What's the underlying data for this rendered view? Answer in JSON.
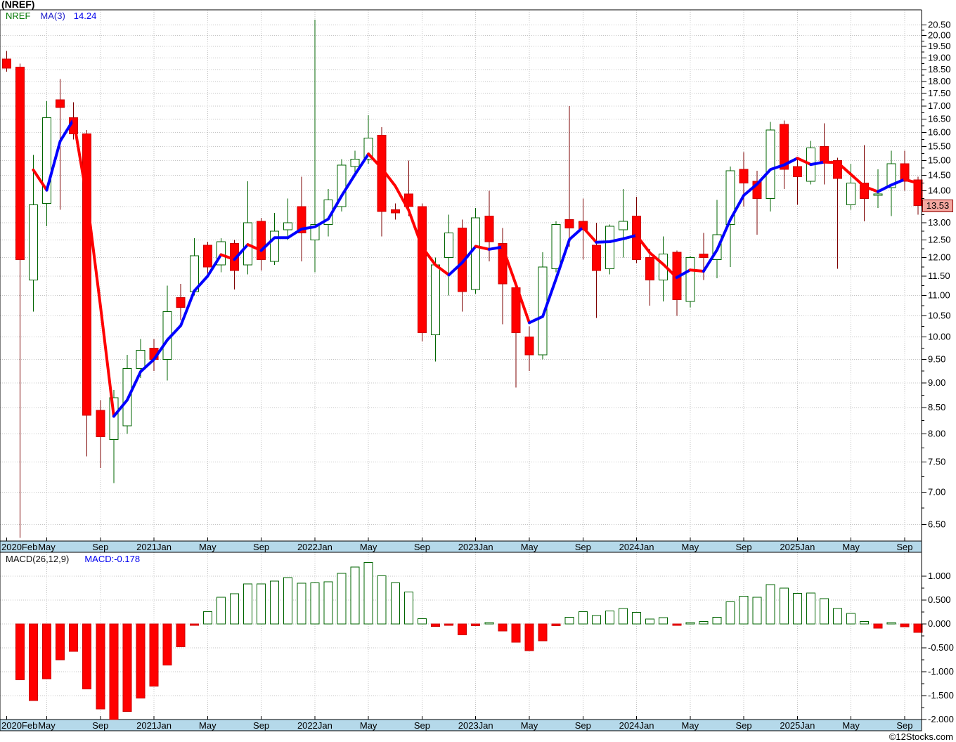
{
  "header": {
    "title": "(NREF)"
  },
  "legend": {
    "symbol": "NREF",
    "ma_label": "MA(3)",
    "ma_value": "14.24"
  },
  "macd_legend": {
    "label": "MACD(26,12,9)",
    "value": "MACD:-0.178"
  },
  "footer": {
    "copyright": "©12Stocks.com"
  },
  "colors": {
    "grid": "#c4c4c4",
    "frame": "#000000",
    "axis_bar": "#b5d9ea",
    "up_fill": "#ffffff",
    "up_border": "#006400",
    "wick_up": "#006400",
    "down_fill": "#ff0000",
    "down_border": "#cc0000",
    "wick_down": "#7d0000",
    "ma_up": "#0000ff",
    "ma_down": "#ff0000",
    "macd_pos_fill": "#ffffff",
    "macd_pos_border": "#006400",
    "macd_neg_fill": "#ff0000",
    "macd_neg_border": "#cc0000",
    "badge_bg": "#f4a8a0",
    "badge_border": "#8b0000",
    "text": "#000000"
  },
  "chart_data": {
    "type": "candlestick",
    "title": "(NREF)",
    "panels": [
      "price (log scale)",
      "macd_histogram"
    ],
    "x_unit": "month",
    "ma_period": 3,
    "ma_last_value": 14.24,
    "macd_params": "26,12,9",
    "macd_last_value": -0.178,
    "price_axis": {
      "scale": "log",
      "label_min": 6.5,
      "label_max": 20.5,
      "label_step": 0.5,
      "last_price": 13.53,
      "last_price_label": "13.53"
    },
    "macd_axis": {
      "min": -2.0,
      "max": 1.0,
      "step": 0.5
    },
    "x_tick_labels": [
      [
        0,
        "2020Feb"
      ],
      [
        3,
        "May"
      ],
      [
        7,
        "Sep"
      ],
      [
        11,
        "2021Jan"
      ],
      [
        15,
        "May"
      ],
      [
        19,
        "Sep"
      ],
      [
        23,
        "2022Jan"
      ],
      [
        27,
        "May"
      ],
      [
        31,
        "Sep"
      ],
      [
        35,
        "2023Jan"
      ],
      [
        39,
        "May"
      ],
      [
        43,
        "Sep"
      ],
      [
        47,
        "2024Jan"
      ],
      [
        51,
        "May"
      ],
      [
        55,
        "Sep"
      ],
      [
        59,
        "2025Jan"
      ],
      [
        63,
        "May"
      ],
      [
        67,
        "Sep"
      ]
    ],
    "tuple_format": [
      "month",
      "open",
      "high",
      "low",
      "close",
      "macd"
    ],
    "candles": [
      [
        "2020-02",
        18.95,
        19.3,
        18.4,
        18.55,
        null
      ],
      [
        "2020-03",
        18.6,
        18.75,
        6.3,
        11.95,
        -1.17
      ],
      [
        "2020-04",
        11.4,
        15.2,
        10.6,
        13.55,
        -1.6
      ],
      [
        "2020-05",
        13.6,
        17.2,
        12.9,
        16.55,
        -1.15
      ],
      [
        "2020-06",
        17.25,
        18.1,
        13.4,
        16.95,
        -0.75
      ],
      [
        "2020-07",
        16.55,
        17.15,
        15.75,
        15.95,
        -0.57
      ],
      [
        "2020-08",
        15.95,
        16.1,
        7.6,
        8.35,
        -1.36
      ],
      [
        "2020-09",
        8.45,
        8.65,
        7.4,
        7.95,
        -1.78
      ],
      [
        "2020-10",
        7.9,
        8.85,
        7.15,
        8.7,
        -2.0
      ],
      [
        "2020-11",
        8.15,
        9.6,
        8.0,
        9.3,
        -1.83
      ],
      [
        "2020-12",
        9.3,
        9.95,
        9.1,
        9.7,
        -1.55
      ],
      [
        "2021-01",
        9.75,
        9.95,
        9.25,
        9.5,
        -1.3
      ],
      [
        "2021-02",
        9.5,
        11.25,
        9.05,
        10.6,
        -0.86
      ],
      [
        "2021-03",
        10.95,
        11.3,
        10.4,
        10.7,
        -0.48
      ],
      [
        "2021-04",
        11.1,
        12.55,
        11.0,
        12.05,
        -0.02
      ],
      [
        "2021-05",
        12.35,
        12.45,
        11.5,
        11.75,
        0.26
      ],
      [
        "2021-06",
        11.8,
        12.55,
        11.6,
        12.45,
        0.56
      ],
      [
        "2021-07",
        12.4,
        12.5,
        11.15,
        11.65,
        0.63
      ],
      [
        "2021-08",
        11.8,
        14.3,
        11.55,
        13.0,
        0.84
      ],
      [
        "2021-09",
        13.05,
        13.15,
        11.65,
        11.95,
        0.84
      ],
      [
        "2021-10",
        11.9,
        13.3,
        11.8,
        12.75,
        0.9
      ],
      [
        "2021-11",
        12.8,
        13.75,
        12.5,
        13.0,
        0.97
      ],
      [
        "2021-12",
        13.5,
        14.45,
        11.9,
        12.7,
        0.85
      ],
      [
        "2022-01",
        12.5,
        20.75,
        11.6,
        12.95,
        0.86
      ],
      [
        "2022-02",
        12.95,
        14.05,
        12.6,
        13.7,
        0.88
      ],
      [
        "2022-03",
        13.5,
        15.05,
        13.35,
        14.85,
        1.06
      ],
      [
        "2022-04",
        14.8,
        15.35,
        14.45,
        15.05,
        1.19
      ],
      [
        "2022-05",
        15.05,
        16.65,
        14.9,
        15.8,
        1.29
      ],
      [
        "2022-06",
        15.9,
        16.2,
        12.6,
        13.35,
        1.01
      ],
      [
        "2022-07",
        13.4,
        13.6,
        13.1,
        13.3,
        0.86
      ],
      [
        "2022-08",
        13.9,
        15.0,
        13.2,
        13.5,
        0.67
      ],
      [
        "2022-09",
        13.5,
        13.6,
        9.9,
        10.1,
        0.11
      ],
      [
        "2022-10",
        10.05,
        12.0,
        9.45,
        11.8,
        -0.05
      ],
      [
        "2022-11",
        12.0,
        13.25,
        11.0,
        12.7,
        -0.03
      ],
      [
        "2022-12",
        12.85,
        13.1,
        10.6,
        11.1,
        -0.23
      ],
      [
        "2023-01",
        11.15,
        13.45,
        11.05,
        13.15,
        -0.04
      ],
      [
        "2023-02",
        13.2,
        14.0,
        11.9,
        12.45,
        0.01
      ],
      [
        "2023-03",
        12.4,
        12.85,
        10.3,
        11.3,
        -0.15
      ],
      [
        "2023-04",
        11.2,
        11.35,
        8.9,
        10.1,
        -0.38
      ],
      [
        "2023-05",
        10.0,
        10.25,
        9.25,
        9.6,
        -0.56
      ],
      [
        "2023-06",
        9.6,
        12.15,
        9.5,
        11.75,
        -0.35
      ],
      [
        "2023-07",
        11.7,
        13.05,
        11.6,
        12.95,
        -0.04
      ],
      [
        "2023-08",
        13.1,
        17.0,
        12.3,
        12.85,
        0.14
      ],
      [
        "2023-09",
        13.05,
        13.75,
        11.95,
        12.8,
        0.26
      ],
      [
        "2023-10",
        12.35,
        13.0,
        10.45,
        11.65,
        0.18
      ],
      [
        "2023-11",
        11.7,
        12.95,
        11.55,
        12.9,
        0.27
      ],
      [
        "2023-12",
        12.8,
        14.05,
        12.0,
        13.05,
        0.32
      ],
      [
        "2024-01",
        13.2,
        13.8,
        11.85,
        11.95,
        0.24
      ],
      [
        "2024-02",
        12.0,
        12.25,
        10.75,
        11.4,
        0.1
      ],
      [
        "2024-03",
        11.4,
        12.6,
        10.85,
        12.1,
        0.13
      ],
      [
        "2024-04",
        12.15,
        12.2,
        10.5,
        10.9,
        -0.03
      ],
      [
        "2024-05",
        10.85,
        12.05,
        10.7,
        12.0,
        0.03
      ],
      [
        "2024-06",
        12.1,
        12.7,
        11.4,
        12.0,
        0.05
      ],
      [
        "2024-07",
        11.95,
        13.7,
        11.45,
        12.65,
        0.14
      ],
      [
        "2024-08",
        12.95,
        14.8,
        11.75,
        14.65,
        0.46
      ],
      [
        "2024-09",
        14.7,
        15.3,
        13.5,
        14.25,
        0.58
      ],
      [
        "2024-10",
        14.3,
        14.65,
        12.65,
        13.75,
        0.56
      ],
      [
        "2024-11",
        13.75,
        16.4,
        13.35,
        16.1,
        0.82
      ],
      [
        "2024-12",
        16.3,
        16.45,
        14.05,
        14.7,
        0.75
      ],
      [
        "2025-01",
        14.8,
        15.1,
        13.55,
        14.45,
        0.64
      ],
      [
        "2025-02",
        14.3,
        15.7,
        14.2,
        15.45,
        0.65
      ],
      [
        "2025-03",
        15.5,
        16.35,
        14.2,
        14.95,
        0.53
      ],
      [
        "2025-04",
        15.0,
        15.1,
        11.7,
        14.4,
        0.32
      ],
      [
        "2025-05",
        13.55,
        14.9,
        13.4,
        14.25,
        0.22
      ],
      [
        "2025-06",
        14.25,
        15.55,
        13.05,
        13.75,
        0.05
      ],
      [
        "2025-07",
        13.85,
        14.7,
        13.45,
        13.9,
        -0.09
      ],
      [
        "2025-08",
        14.1,
        15.35,
        13.2,
        14.9,
        0.03
      ],
      [
        "2025-09",
        14.9,
        15.35,
        14.0,
        14.3,
        -0.06
      ],
      [
        "2025-10",
        14.35,
        14.45,
        13.25,
        13.53,
        -0.178
      ]
    ]
  }
}
